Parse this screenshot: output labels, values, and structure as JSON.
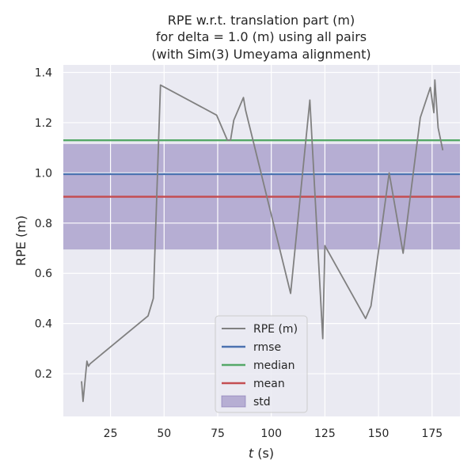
{
  "chart_data": {
    "type": "line",
    "title": [
      "RPE w.r.t. translation part (m)",
      "for delta = 1.0 (m) using all pairs",
      "(with Sim(3) Umeyama alignment)"
    ],
    "xlabel": {
      "italic": "t",
      "rest": " (s)"
    },
    "ylabel": "RPE (m)",
    "xlim": [
      3,
      188
    ],
    "ylim": [
      0.03,
      1.43
    ],
    "xticks": [
      25,
      50,
      75,
      100,
      125,
      150,
      175
    ],
    "yticks": [
      0.2,
      0.4,
      0.6,
      0.8,
      1.0,
      1.2,
      1.4
    ],
    "xtick_labels": [
      "25",
      "50",
      "75",
      "100",
      "125",
      "150",
      "175"
    ],
    "ytick_labels": [
      "0.2",
      "0.4",
      "0.6",
      "0.8",
      "1.0",
      "1.2",
      "1.4"
    ],
    "grid": true,
    "legend_position": "bottom-center",
    "series": [
      {
        "name": "RPE (m)",
        "kind": "line",
        "color": "#808080",
        "x": [
          11.5,
          12.2,
          14,
          14.7,
          15.5,
          42.5,
          45.0,
          48.3,
          74.5,
          79.5,
          81.0,
          82.5,
          87.0,
          88.0,
          109.0,
          118.0,
          124.0,
          125.0,
          144.0,
          146.5,
          155.0,
          161.5,
          169.5,
          174.2,
          175.8,
          176.3,
          177.8,
          180.0
        ],
        "y": [
          0.17,
          0.09,
          0.25,
          0.23,
          0.24,
          0.43,
          0.5,
          1.35,
          1.23,
          1.13,
          1.13,
          1.21,
          1.3,
          1.25,
          0.52,
          1.29,
          0.34,
          0.71,
          0.42,
          0.47,
          1.0,
          0.68,
          1.22,
          1.34,
          1.24,
          1.37,
          1.18,
          1.09
        ]
      },
      {
        "name": "rmse",
        "kind": "hline",
        "color": "#4c72b0",
        "value": 0.995
      },
      {
        "name": "median",
        "kind": "hline",
        "color": "#55a868",
        "value": 1.13
      },
      {
        "name": "mean",
        "kind": "hline",
        "color": "#c44e52",
        "value": 0.905
      },
      {
        "name": "std",
        "kind": "band",
        "color": "#8172b3",
        "low": 0.695,
        "high": 1.115
      }
    ],
    "colors": {
      "plot_background": "#eaeaf2",
      "grid": "#ffffff",
      "std_fill": "#8172b3",
      "legend_background": "#eaeaf2",
      "legend_border": "#cccccc"
    }
  }
}
